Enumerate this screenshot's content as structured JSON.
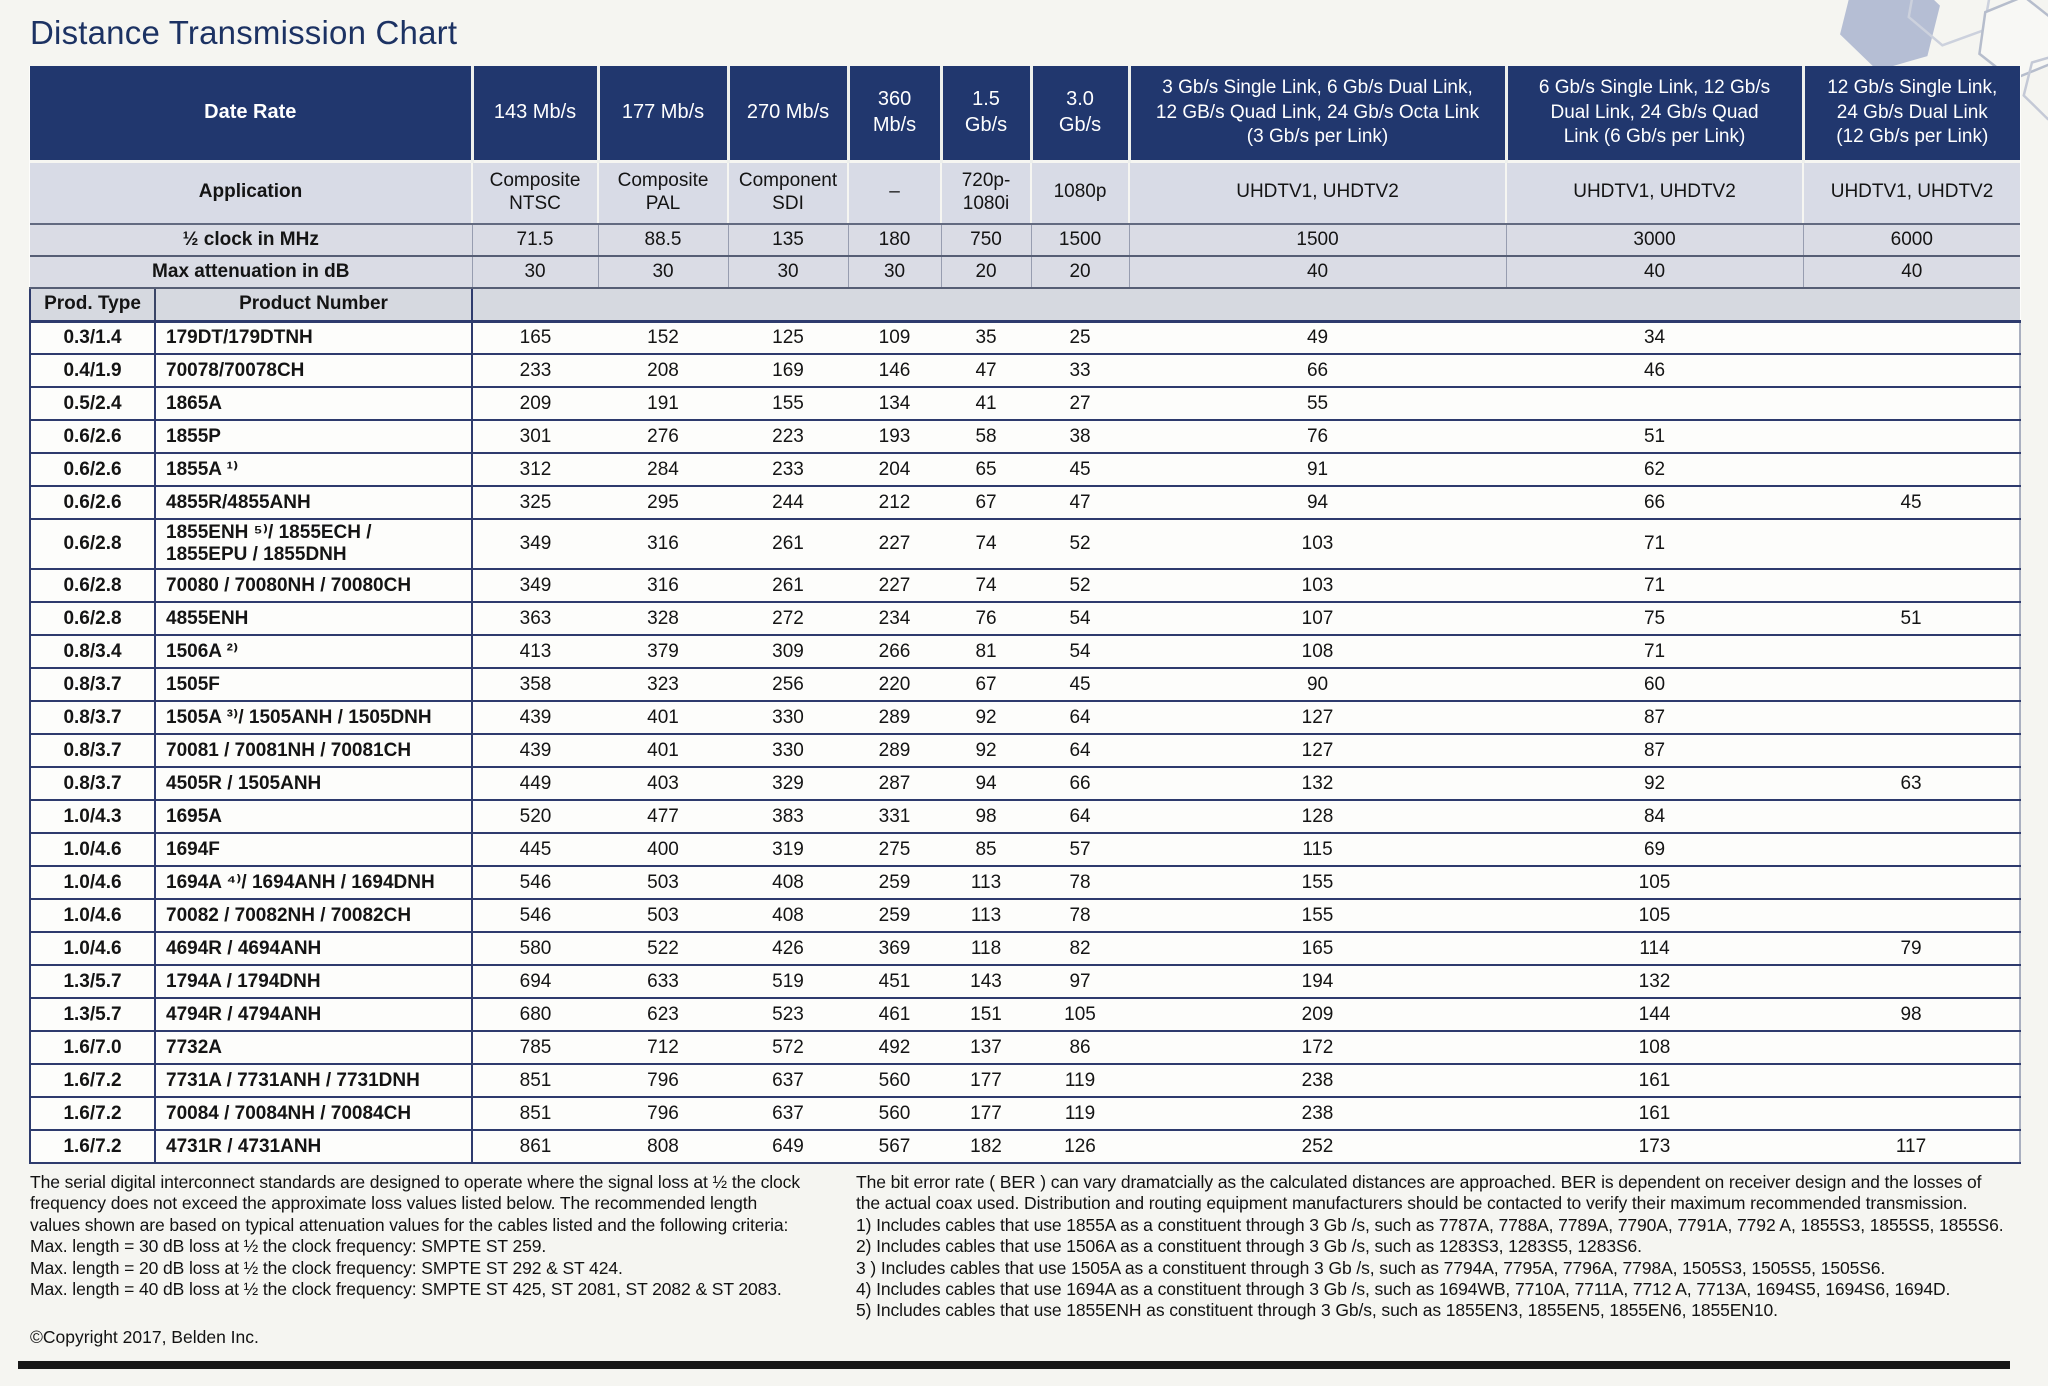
{
  "title": "Distance Transmission Chart",
  "colors": {
    "header_navy": "#21376e",
    "header_gray": "#d8dbe6",
    "row_separator_navy": "#2e3b6d",
    "title_navy": "#1c3263"
  },
  "table": {
    "header": {
      "date_rate_label": "Date Rate",
      "application_label": "Application",
      "clock_label": "½ clock in MHz",
      "attenuation_label": "Max attenuation in dB",
      "prod_type_label": "Prod. Type",
      "product_number_label": "Product Number",
      "rate_cols": [
        "143 Mb/s",
        "177 Mb/s",
        "270 Mb/s",
        "360\nMb/s",
        "1.5\nGb/s",
        "3.0\nGb/s",
        "3 Gb/s Single Link, 6 Gb/s Dual Link,\n12 GB/s Quad Link, 24 Gb/s Octa Link\n(3 Gb/s per Link)",
        "6 Gb/s Single Link, 12 Gb/s\nDual Link, 24 Gb/s Quad\nLink (6 Gb/s per Link)",
        "12 Gb/s Single Link,\n24 Gb/s Dual Link\n(12 Gb/s per Link)"
      ],
      "applications": [
        "Composite\nNTSC",
        "Composite\nPAL",
        "Component\nSDI",
        "–",
        "720p-\n1080i",
        "1080p",
        "UHDTV1, UHDTV2",
        "UHDTV1, UHDTV2",
        "UHDTV1, UHDTV2"
      ],
      "half_clock_mhz": [
        "71.5",
        "88.5",
        "135",
        "180",
        "750",
        "1500",
        "1500",
        "3000",
        "6000"
      ],
      "max_attenuation_db": [
        "30",
        "30",
        "30",
        "30",
        "20",
        "20",
        "40",
        "40",
        "40"
      ]
    },
    "rows": [
      {
        "prod_type": "0.3/1.4",
        "product_number": "179DT/179DTNH",
        "values": [
          "165",
          "152",
          "125",
          "109",
          "35",
          "25",
          "49",
          "34",
          ""
        ]
      },
      {
        "prod_type": "0.4/1.9",
        "product_number": "70078/70078CH",
        "values": [
          "233",
          "208",
          "169",
          "146",
          "47",
          "33",
          "66",
          "46",
          ""
        ]
      },
      {
        "prod_type": "0.5/2.4",
        "product_number": "1865A",
        "values": [
          "209",
          "191",
          "155",
          "134",
          "41",
          "27",
          "55",
          "",
          ""
        ]
      },
      {
        "prod_type": "0.6/2.6",
        "product_number": "1855P",
        "values": [
          "301",
          "276",
          "223",
          "193",
          "58",
          "38",
          "76",
          "51",
          ""
        ]
      },
      {
        "prod_type": "0.6/2.6",
        "product_number": "1855A ¹⁾",
        "values": [
          "312",
          "284",
          "233",
          "204",
          "65",
          "45",
          "91",
          "62",
          ""
        ]
      },
      {
        "prod_type": "0.6/2.6",
        "product_number": "4855R/4855ANH",
        "values": [
          "325",
          "295",
          "244",
          "212",
          "67",
          "47",
          "94",
          "66",
          "45"
        ]
      },
      {
        "prod_type": "0.6/2.8",
        "product_number": "1855ENH ⁵⁾/ 1855ECH /\n1855EPU / 1855DNH",
        "values": [
          "349",
          "316",
          "261",
          "227",
          "74",
          "52",
          "103",
          "71",
          ""
        ]
      },
      {
        "prod_type": "0.6/2.8",
        "product_number": "70080 / 70080NH / 70080CH",
        "values": [
          "349",
          "316",
          "261",
          "227",
          "74",
          "52",
          "103",
          "71",
          ""
        ]
      },
      {
        "prod_type": "0.6/2.8",
        "product_number": "4855ENH",
        "values": [
          "363",
          "328",
          "272",
          "234",
          "76",
          "54",
          "107",
          "75",
          "51"
        ]
      },
      {
        "prod_type": "0.8/3.4",
        "product_number": "1506A ²⁾",
        "values": [
          "413",
          "379",
          "309",
          "266",
          "81",
          "54",
          "108",
          "71",
          ""
        ]
      },
      {
        "prod_type": "0.8/3.7",
        "product_number": "1505F",
        "values": [
          "358",
          "323",
          "256",
          "220",
          "67",
          "45",
          "90",
          "60",
          ""
        ]
      },
      {
        "prod_type": "0.8/3.7",
        "product_number": "1505A ³⁾/ 1505ANH / 1505DNH",
        "values": [
          "439",
          "401",
          "330",
          "289",
          "92",
          "64",
          "127",
          "87",
          ""
        ]
      },
      {
        "prod_type": "0.8/3.7",
        "product_number": "70081 / 70081NH / 70081CH",
        "values": [
          "439",
          "401",
          "330",
          "289",
          "92",
          "64",
          "127",
          "87",
          ""
        ]
      },
      {
        "prod_type": "0.8/3.7",
        "product_number": "4505R / 1505ANH",
        "values": [
          "449",
          "403",
          "329",
          "287",
          "94",
          "66",
          "132",
          "92",
          "63"
        ]
      },
      {
        "prod_type": "1.0/4.3",
        "product_number": "1695A",
        "values": [
          "520",
          "477",
          "383",
          "331",
          "98",
          "64",
          "128",
          "84",
          ""
        ]
      },
      {
        "prod_type": "1.0/4.6",
        "product_number": "1694F",
        "values": [
          "445",
          "400",
          "319",
          "275",
          "85",
          "57",
          "115",
          "69",
          ""
        ]
      },
      {
        "prod_type": "1.0/4.6",
        "product_number": "1694A ⁴⁾/ 1694ANH / 1694DNH",
        "values": [
          "546",
          "503",
          "408",
          "259",
          "113",
          "78",
          "155",
          "105",
          ""
        ]
      },
      {
        "prod_type": "1.0/4.6",
        "product_number": "70082 / 70082NH / 70082CH",
        "values": [
          "546",
          "503",
          "408",
          "259",
          "113",
          "78",
          "155",
          "105",
          ""
        ]
      },
      {
        "prod_type": "1.0/4.6",
        "product_number": "4694R / 4694ANH",
        "values": [
          "580",
          "522",
          "426",
          "369",
          "118",
          "82",
          "165",
          "114",
          "79"
        ]
      },
      {
        "prod_type": "1.3/5.7",
        "product_number": "1794A / 1794DNH",
        "values": [
          "694",
          "633",
          "519",
          "451",
          "143",
          "97",
          "194",
          "132",
          ""
        ]
      },
      {
        "prod_type": "1.3/5.7",
        "product_number": "4794R / 4794ANH",
        "values": [
          "680",
          "623",
          "523",
          "461",
          "151",
          "105",
          "209",
          "144",
          "98"
        ]
      },
      {
        "prod_type": "1.6/7.0",
        "product_number": "7732A",
        "values": [
          "785",
          "712",
          "572",
          "492",
          "137",
          "86",
          "172",
          "108",
          ""
        ]
      },
      {
        "prod_type": "1.6/7.2",
        "product_number": "7731A / 7731ANH / 7731DNH",
        "values": [
          "851",
          "796",
          "637",
          "560",
          "177",
          "119",
          "238",
          "161",
          ""
        ]
      },
      {
        "prod_type": "1.6/7.2",
        "product_number": "70084 / 70084NH / 70084CH",
        "values": [
          "851",
          "796",
          "637",
          "560",
          "177",
          "119",
          "238",
          "161",
          ""
        ]
      },
      {
        "prod_type": "1.6/7.2",
        "product_number": "4731R / 4731ANH",
        "values": [
          "861",
          "808",
          "649",
          "567",
          "182",
          "126",
          "252",
          "173",
          "117"
        ]
      }
    ]
  },
  "footnotes": {
    "left": "The serial digital interconnect standards are designed to operate where the signal loss at ½ the clock\nfrequency does not exceed the approximate loss values listed below. The recommended length\nvalues shown are based on typical attenuation values for the cables listed and the following criteria:\nMax. length = 30 dB loss at ½ the clock frequency: SMPTE ST 259.\nMax. length = 20 dB loss at ½ the clock frequency: SMPTE ST 292 & ST 424.\nMax. length = 40 dB loss at ½ the clock frequency: SMPTE ST 425, ST 2081, ST 2082 & ST 2083.",
    "copyright": "©Copyright 2017, Belden Inc.",
    "right": "The bit error rate ( BER ) can vary dramatcially as the calculated distances are approached. BER is dependent on receiver design and the losses of\nthe actual coax used. Distribution and routing equipment manufacturers should be contacted to verify their maximum recommended transmission.\n1) Includes cables that use 1855A as a constituent through 3 Gb /s, such as 7787A, 7788A, 7789A, 7790A, 7791A, 7792 A, 1855S3, 1855S5, 1855S6.\n2) Includes cables that use 1506A as a constituent through 3 Gb /s, such as 1283S3, 1283S5, 1283S6.\n3 ) Includes cables that use 1505A as a constituent through 3 Gb /s, such as 7794A, 7795A, 7796A, 7798A, 1505S3, 1505S5, 1505S6.\n4) Includes cables that use 1694A as a constituent through 3 Gb /s, such as 1694WB, 7710A, 7711A, 7712 A, 7713A, 1694S5, 1694S6, 1694D.\n5) Includes cables that use 1855ENH as constituent through 3 Gb/s, such as 1855EN3, 1855EN5, 1855EN6, 1855EN10."
  }
}
